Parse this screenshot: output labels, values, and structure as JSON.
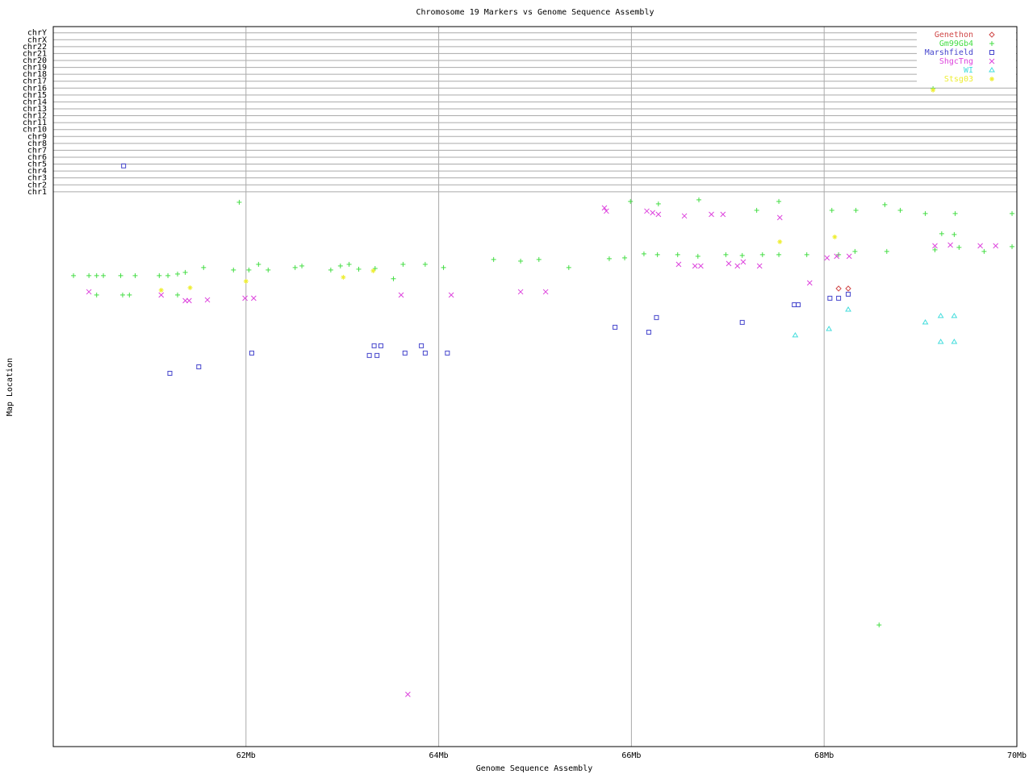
{
  "chart_data": {
    "type": "scatter",
    "title": "Chromosome 19 Markers vs Genome Sequence Assembly",
    "xlabel": "Genome Sequence Assembly",
    "ylabel": "Map Location",
    "xlim": [
      60,
      70
    ],
    "ylim": [
      -79.3,
      24.9
    ],
    "xticks": [
      {
        "value": 62,
        "label": "62Mb"
      },
      {
        "value": 64,
        "label": "64Mb"
      },
      {
        "value": 66,
        "label": "66Mb"
      },
      {
        "value": 68,
        "label": "68Mb"
      },
      {
        "value": 70,
        "label": "70Mb"
      }
    ],
    "yticks": [
      {
        "value": 1,
        "label": "chr1"
      },
      {
        "value": 2,
        "label": "chr2"
      },
      {
        "value": 3,
        "label": "chr3"
      },
      {
        "value": 4,
        "label": "chr4"
      },
      {
        "value": 5,
        "label": "chr5"
      },
      {
        "value": 6,
        "label": "chr6"
      },
      {
        "value": 7,
        "label": "chr7"
      },
      {
        "value": 8,
        "label": "chr8"
      },
      {
        "value": 9,
        "label": "chr9"
      },
      {
        "value": 10,
        "label": "chr10"
      },
      {
        "value": 11,
        "label": "chr11"
      },
      {
        "value": 12,
        "label": "chr12"
      },
      {
        "value": 13,
        "label": "chr13"
      },
      {
        "value": 14,
        "label": "chr14"
      },
      {
        "value": 15,
        "label": "chr15"
      },
      {
        "value": 16,
        "label": "chr16"
      },
      {
        "value": 17,
        "label": "chr17"
      },
      {
        "value": 18,
        "label": "chr18"
      },
      {
        "value": 19,
        "label": "chr19"
      },
      {
        "value": 20,
        "label": "chr20"
      },
      {
        "value": 21,
        "label": "chr21"
      },
      {
        "value": 22,
        "label": "chr22"
      },
      {
        "value": 23,
        "label": "chrX"
      },
      {
        "value": 24,
        "label": "chrY"
      }
    ],
    "grid": true,
    "legend": "top-right",
    "series": [
      {
        "name": "Genethon",
        "color": "#d04848",
        "marker": "diamond",
        "x": [
          68.15,
          68.25
        ],
        "values": [
          -13.01,
          -13.01
        ]
      },
      {
        "name": "Gm99Gb4",
        "color": "#44dd44",
        "marker": "plus",
        "x": [
          60.21,
          60.37,
          60.45,
          60.52,
          60.7,
          60.85,
          61.1,
          61.19,
          61.29,
          61.37,
          61.56,
          61.87,
          62.03,
          62.13,
          62.23,
          62.51,
          62.58,
          62.88,
          62.98,
          63.07,
          63.17,
          63.34,
          63.63,
          63.86,
          64.05,
          64.57,
          64.85,
          65.04,
          65.35,
          65.77,
          65.93,
          66.13,
          66.27,
          66.48,
          66.69,
          66.98,
          67.15,
          67.36,
          67.53,
          67.82,
          68.15,
          68.32,
          68.65,
          69.15,
          69.4,
          69.66,
          69.95,
          61.93,
          65.99,
          66.28,
          66.7,
          67.3,
          67.53,
          68.08,
          68.33,
          68.63,
          68.79,
          69.05,
          69.36,
          69.95,
          69.22,
          69.35,
          60.45,
          60.72,
          60.79,
          61.29,
          63.53,
          68.57,
          69.13
        ],
        "values": [
          -11.14,
          -11.14,
          -11.14,
          -11.14,
          -11.14,
          -11.14,
          -11.14,
          -11.14,
          -10.91,
          -10.68,
          -9.97,
          -10.33,
          -10.33,
          -9.51,
          -10.33,
          -9.97,
          -9.74,
          -10.33,
          -9.74,
          -9.51,
          -10.21,
          -10.1,
          -9.51,
          -9.51,
          -9.97,
          -8.81,
          -9.04,
          -8.81,
          -9.97,
          -8.69,
          -8.57,
          -7.99,
          -8.11,
          -8.11,
          -8.34,
          -8.11,
          -8.22,
          -8.11,
          -8.11,
          -8.11,
          -8.11,
          -7.64,
          -7.64,
          -7.41,
          -7.06,
          -7.64,
          -6.94,
          -0.52,
          -0.4,
          -0.75,
          -0.17,
          -1.69,
          -0.4,
          -1.69,
          -1.69,
          -0.87,
          -1.69,
          -2.15,
          -2.15,
          -2.15,
          -5.07,
          -5.19,
          -13.94,
          -13.94,
          -13.94,
          -13.94,
          -11.6,
          -61.7,
          15.94
        ]
      },
      {
        "name": "Marshfield",
        "color": "#4444cc",
        "marker": "square",
        "x": [
          60.73,
          61.21,
          61.51,
          62.06,
          63.28,
          63.36,
          63.33,
          63.4,
          63.65,
          63.82,
          63.86,
          64.09,
          65.83,
          66.18,
          66.26,
          67.15,
          67.69,
          67.73,
          68.06,
          68.15,
          68.25
        ],
        "values": [
          4.74,
          -25.27,
          -24.34,
          -22.35,
          -22.7,
          -22.7,
          -21.3,
          -21.3,
          -22.35,
          -21.3,
          -22.35,
          -22.35,
          -18.61,
          -19.32,
          -17.21,
          -17.91,
          -15.35,
          -15.35,
          -14.41,
          -14.41,
          -13.83
        ]
      },
      {
        "name": "ShgcTng",
        "color": "#dd44dd",
        "marker": "x",
        "x": [
          60.37,
          61.12,
          61.37,
          61.41,
          61.6,
          61.99,
          62.08,
          63.61,
          63.68,
          64.13,
          64.85,
          65.11,
          65.72,
          65.74,
          66.16,
          66.22,
          66.28,
          66.55,
          66.83,
          66.95,
          67.54,
          66.49,
          66.66,
          66.72,
          67.01,
          67.1,
          67.16,
          67.33,
          67.85,
          68.03,
          68.13,
          68.26,
          69.15,
          69.31,
          69.62,
          69.78
        ],
        "values": [
          -13.48,
          -13.94,
          -14.76,
          -14.76,
          -14.65,
          -14.41,
          -14.41,
          -13.94,
          -71.74,
          -13.94,
          -13.48,
          -13.48,
          -1.34,
          -1.8,
          -1.8,
          -2.04,
          -2.27,
          -2.5,
          -2.27,
          -2.27,
          -2.74,
          -9.51,
          -9.74,
          -9.74,
          -9.39,
          -9.74,
          -9.16,
          -9.74,
          -12.19,
          -8.57,
          -8.34,
          -8.34,
          -6.82,
          -6.71,
          -6.82,
          -6.82
        ]
      },
      {
        "name": "WI",
        "color": "#44dddd",
        "marker": "triangle",
        "x": [
          67.7,
          68.05,
          68.25,
          69.05,
          69.21,
          69.35,
          69.21,
          69.35
        ],
        "values": [
          -19.78,
          -18.85,
          -16.05,
          -17.91,
          -16.98,
          -16.98,
          -20.72,
          -20.72
        ]
      },
      {
        "name": "Stsg03",
        "color": "#eeee33",
        "marker": "star",
        "x": [
          61.12,
          61.42,
          62.0,
          63.01,
          63.32,
          67.54,
          68.11,
          69.13
        ],
        "values": [
          -13.24,
          -12.89,
          -11.96,
          -11.38,
          -10.44,
          -6.24,
          -5.54,
          15.71
        ]
      }
    ]
  }
}
